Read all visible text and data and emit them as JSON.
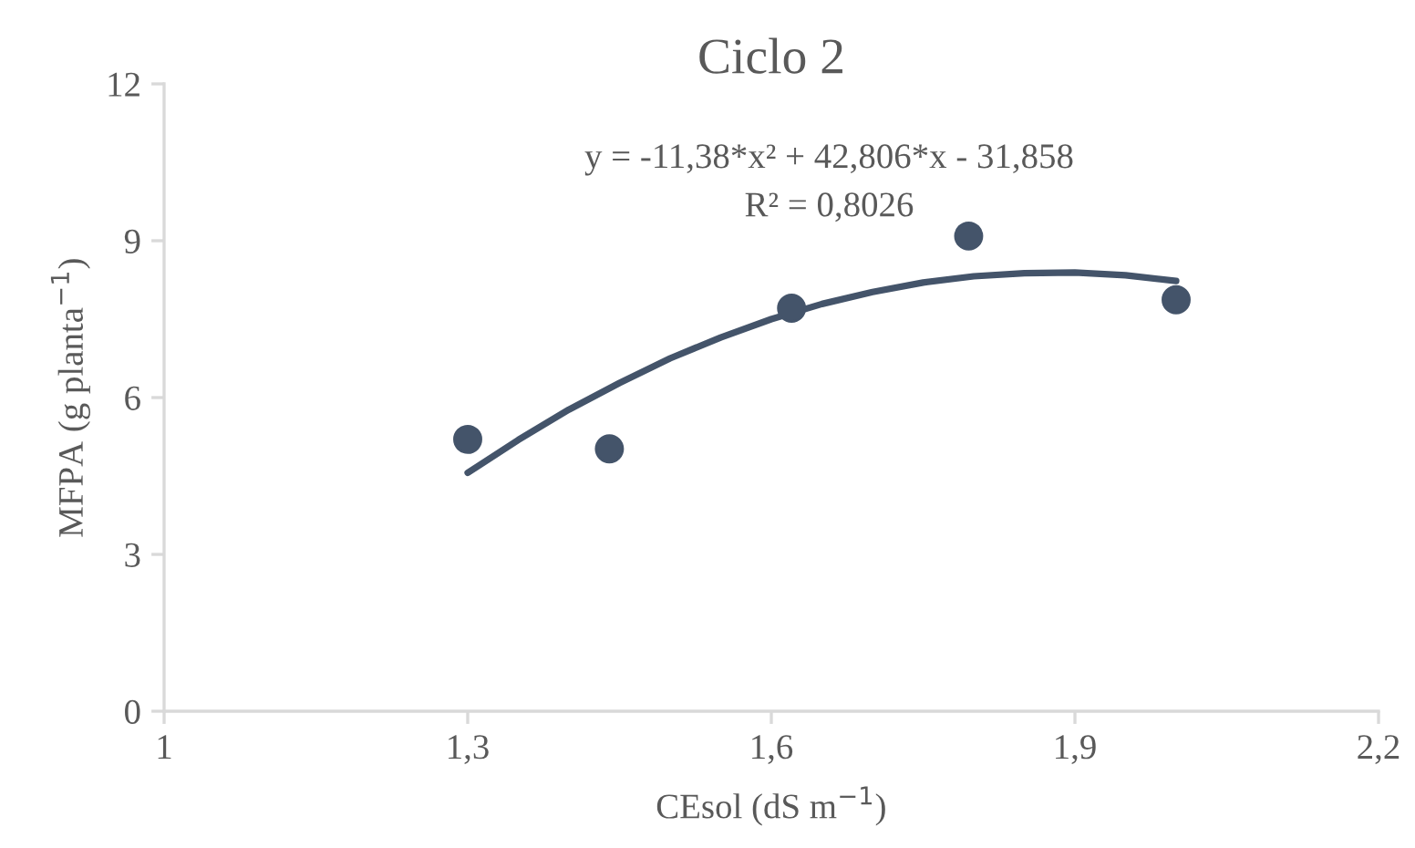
{
  "chart_data": {
    "type": "scatter",
    "title": "Ciclo 2",
    "xlabel": "CEsol (dS m$^{−1}$)",
    "ylabel": "MFPA (g planta$^{−1}$)",
    "annotations": [
      "y = -11,38*x² + 42,806*x - 31,858",
      "R² = 0,8026"
    ],
    "xlim": [
      1,
      2.2
    ],
    "xticks": [
      1,
      {
        "value": 1.3,
        "label": "1,3"
      },
      {
        "value": 1.6,
        "label": "1,6"
      },
      {
        "value": 1.9,
        "label": "1,9"
      },
      {
        "value": 2.2,
        "label": "2,2"
      }
    ],
    "ylim": [
      0,
      12
    ],
    "yticks": [
      0,
      3,
      6,
      9,
      12
    ],
    "grid": false,
    "legend": false,
    "series": [
      {
        "color": "#44546a",
        "marker": "circle",
        "x": [
          1.3,
          1.44,
          1.62,
          1.795,
          2.0
        ],
        "values": [
          5.2,
          5.02,
          7.71,
          9.09,
          7.87
        ]
      },
      {
        "type": "line",
        "color": "#44546a",
        "marker": "none",
        "line_style": "solid",
        "x": [
          1.3,
          1.35,
          1.4,
          1.45,
          1.5,
          1.55,
          1.6,
          1.65,
          1.7,
          1.75,
          1.8,
          1.85,
          1.9,
          1.95,
          2.0
        ],
        "values": [
          4.56,
          5.19,
          5.77,
          6.28,
          6.75,
          7.15,
          7.5,
          7.79,
          8.02,
          8.2,
          8.32,
          8.38,
          8.39,
          8.34,
          8.23
        ]
      }
    ]
  }
}
